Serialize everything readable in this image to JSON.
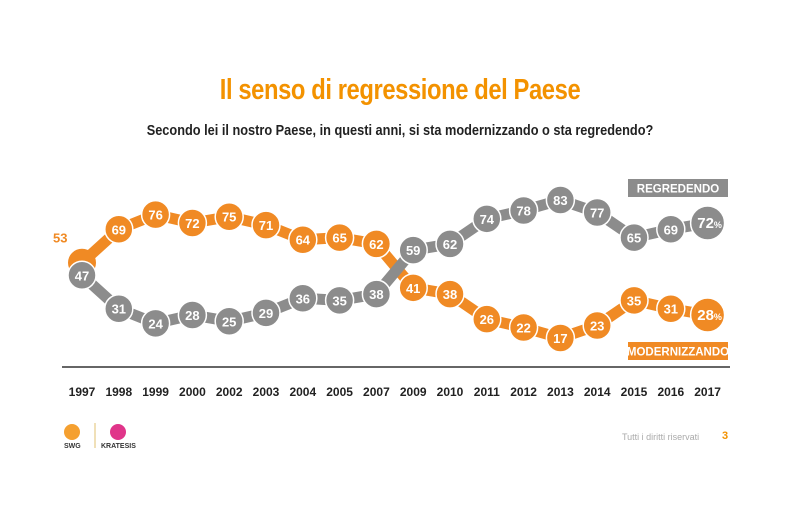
{
  "chart_data": {
    "type": "line",
    "title": "Il senso di regressione del Paese",
    "subtitle": "Secondo lei il nostro Paese, in questi anni, si sta modernizzando o sta regredendo?",
    "categories": [
      "1997",
      "1998",
      "1999",
      "2000",
      "2002",
      "2003",
      "2004",
      "2005",
      "2007",
      "2009",
      "2010",
      "2011",
      "2012",
      "2013",
      "2014",
      "2015",
      "2016",
      "2017"
    ],
    "series": [
      {
        "name": "REGREDENDO",
        "color": "#8c8c8c",
        "values": [
          47,
          31,
          24,
          28,
          25,
          29,
          36,
          35,
          38,
          59,
          62,
          74,
          78,
          83,
          77,
          65,
          69,
          72
        ]
      },
      {
        "name": "MODERNIZZANDO",
        "color": "#f08a24",
        "values": [
          53,
          69,
          76,
          72,
          75,
          71,
          64,
          65,
          62,
          41,
          38,
          26,
          22,
          17,
          23,
          35,
          31,
          28
        ]
      }
    ],
    "last_value_suffix": "%",
    "grid": false,
    "legend": "right"
  },
  "footer": {
    "rights": "Tutti i diritti riservati",
    "page": "3"
  },
  "logos": {
    "swg": "SWG",
    "kratesis": "KRATESIS"
  }
}
